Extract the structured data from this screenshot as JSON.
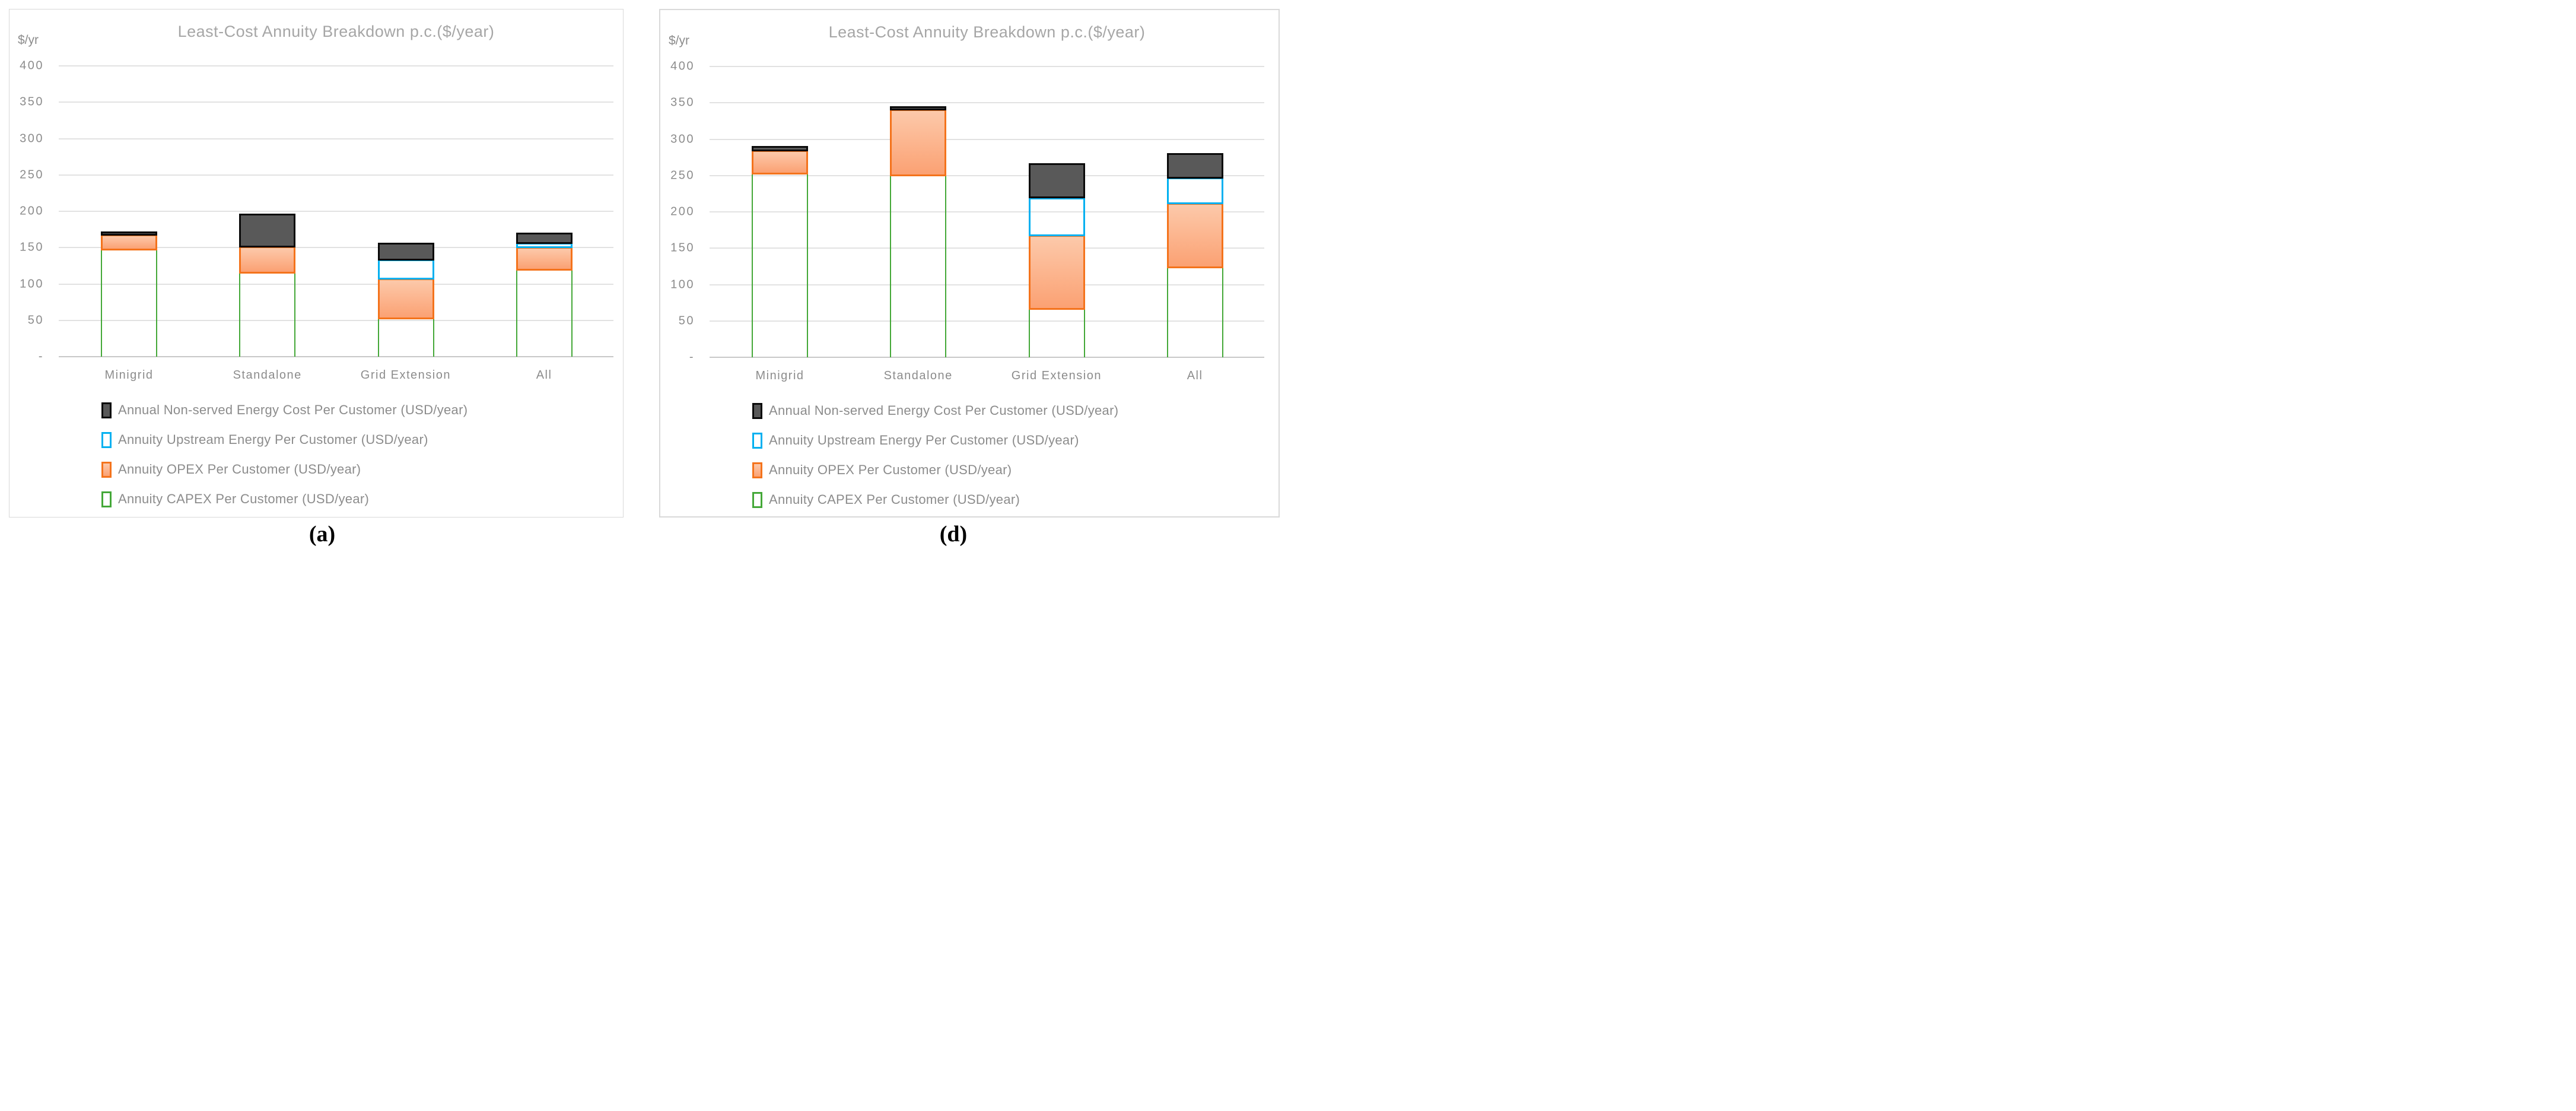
{
  "captions": [
    "(a)",
    "(d)"
  ],
  "colors": {
    "title": "#A6A6A6",
    "text": "#8C8C8C",
    "panel_border": "#D9D9D9",
    "gridline": "#E2E2E2",
    "axis_line": "#C8C8C8",
    "nonserved_fill": "#595959",
    "nonserved_border": "#0A0A0A",
    "upstream_border": "#00B0F0",
    "opex_border": "#F4731C",
    "opex_fill_top": "#FCC9AA",
    "opex_fill_bottom": "#FBA173",
    "capex_border": "#44A838"
  },
  "chart_data": [
    {
      "type": "bar",
      "stacked": true,
      "title": "Least-Cost Annuity Breakdown p.c.($/year)",
      "y_axis_label": "$/yr",
      "ylabel": "$/yr",
      "xlabel": "",
      "ylim": [
        0,
        400
      ],
      "y_tick_step": 50,
      "y_ticks": [
        "400",
        "350",
        "300",
        "250",
        "200",
        "150",
        "100",
        "50",
        "-"
      ],
      "grid": true,
      "legend_position": "bottom-left",
      "categories": [
        "Minigrid",
        "Standalone",
        "Grid Extension",
        "All"
      ],
      "series": [
        {
          "key": "capex",
          "name": "Annuity CAPEX Per Customer (USD/year)",
          "values": [
            148,
            116,
            53,
            120
          ]
        },
        {
          "key": "opex",
          "name": "Annuity OPEX Per Customer (USD/year)",
          "values": [
            20,
            36,
            55,
            31
          ]
        },
        {
          "key": "upstream",
          "name": "Annuity Upstream Energy Per Customer (USD/year)",
          "values": [
            0,
            0,
            26,
            6
          ]
        },
        {
          "key": "nonserved",
          "name": "Annual Non-served Energy Cost Per Customer (USD/year)",
          "values": [
            3,
            45,
            23,
            14
          ]
        }
      ],
      "totals": [
        171,
        197,
        157,
        171
      ],
      "legend_order": [
        "nonserved",
        "upstream",
        "opex",
        "capex"
      ]
    },
    {
      "type": "bar",
      "stacked": true,
      "title": "Least-Cost Annuity Breakdown p.c.($/year)",
      "y_axis_label": "$/yr",
      "ylabel": "$/yr",
      "xlabel": "",
      "ylim": [
        0,
        400
      ],
      "y_tick_step": 50,
      "y_ticks": [
        "400",
        "350",
        "300",
        "250",
        "200",
        "150",
        "100",
        "50",
        "-"
      ],
      "grid": true,
      "legend_position": "bottom-left",
      "categories": [
        "Minigrid",
        "Standalone",
        "Grid Extension",
        "All"
      ],
      "series": [
        {
          "key": "capex",
          "name": "Annuity CAPEX Per Customer (USD/year)",
          "values": [
            253,
            251,
            67,
            124
          ]
        },
        {
          "key": "opex",
          "name": "Annuity OPEX Per Customer (USD/year)",
          "values": [
            32,
            90,
            101,
            88
          ]
        },
        {
          "key": "upstream",
          "name": "Annuity Upstream Energy Per Customer (USD/year)",
          "values": [
            0,
            0,
            52,
            35
          ]
        },
        {
          "key": "nonserved",
          "name": "Annual Non-served Energy Cost Per Customer (USD/year)",
          "values": [
            6,
            4,
            47,
            34
          ]
        }
      ],
      "totals": [
        291,
        345,
        267,
        281
      ],
      "legend_order": [
        "nonserved",
        "upstream",
        "opex",
        "capex"
      ]
    }
  ]
}
